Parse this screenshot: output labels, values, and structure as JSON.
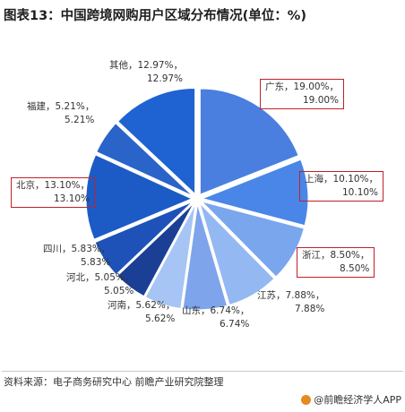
{
  "title": "图表13：中国跨境网购用户区域分布情况(单位：%)",
  "source": "资料来源：电子商务研究中心 前瞻产业研究院整理",
  "brand": "@前瞻经济学人APP",
  "chart_data": {
    "type": "pie",
    "title": "图表13：中国跨境网购用户区域分布情况(单位：%)",
    "slices": [
      {
        "name": "广东",
        "value": 19.0,
        "label": "广东，19.00%，",
        "label2": "19.00%",
        "color": "#4a7fe0",
        "highlight": true
      },
      {
        "name": "上海",
        "value": 10.1,
        "label": "上海，10.10%，",
        "label2": "10.10%",
        "color": "#4a86e8",
        "highlight": true
      },
      {
        "name": "浙江",
        "value": 8.5,
        "label": "浙江，8.50%，",
        "label2": "8.50%",
        "color": "#7aa6ee",
        "highlight": true
      },
      {
        "name": "江苏",
        "value": 7.88,
        "label": "江苏，7.88%，",
        "label2": "7.88%",
        "color": "#94b8f2",
        "highlight": false
      },
      {
        "name": "山东",
        "value": 6.74,
        "label": "山东，6.74%，",
        "label2": "6.74%",
        "color": "#7ea4ec",
        "highlight": false
      },
      {
        "name": "河南",
        "value": 5.62,
        "label": "河南，5.62%，",
        "label2": "5.62%",
        "color": "#a6c4f4",
        "highlight": false
      },
      {
        "name": "河北",
        "value": 5.05,
        "label": "河北，5.05%，",
        "label2": "5.05%",
        "color": "#1a3f95",
        "highlight": false
      },
      {
        "name": "四川",
        "value": 5.83,
        "label": "四川，5.83%，",
        "label2": "5.83%",
        "color": "#1e52b8",
        "highlight": false
      },
      {
        "name": "北京",
        "value": 13.1,
        "label": "北京，13.10%，",
        "label2": "13.10%",
        "color": "#1c5bc6",
        "highlight": true
      },
      {
        "name": "福建",
        "value": 5.21,
        "label": "福建，5.21%，",
        "label2": "5.21%",
        "color": "#2a64c8",
        "highlight": false
      },
      {
        "name": "其他",
        "value": 12.97,
        "label": "其他，12.97%，",
        "label2": "12.97%",
        "color": "#1f62d2",
        "highlight": false
      }
    ]
  }
}
